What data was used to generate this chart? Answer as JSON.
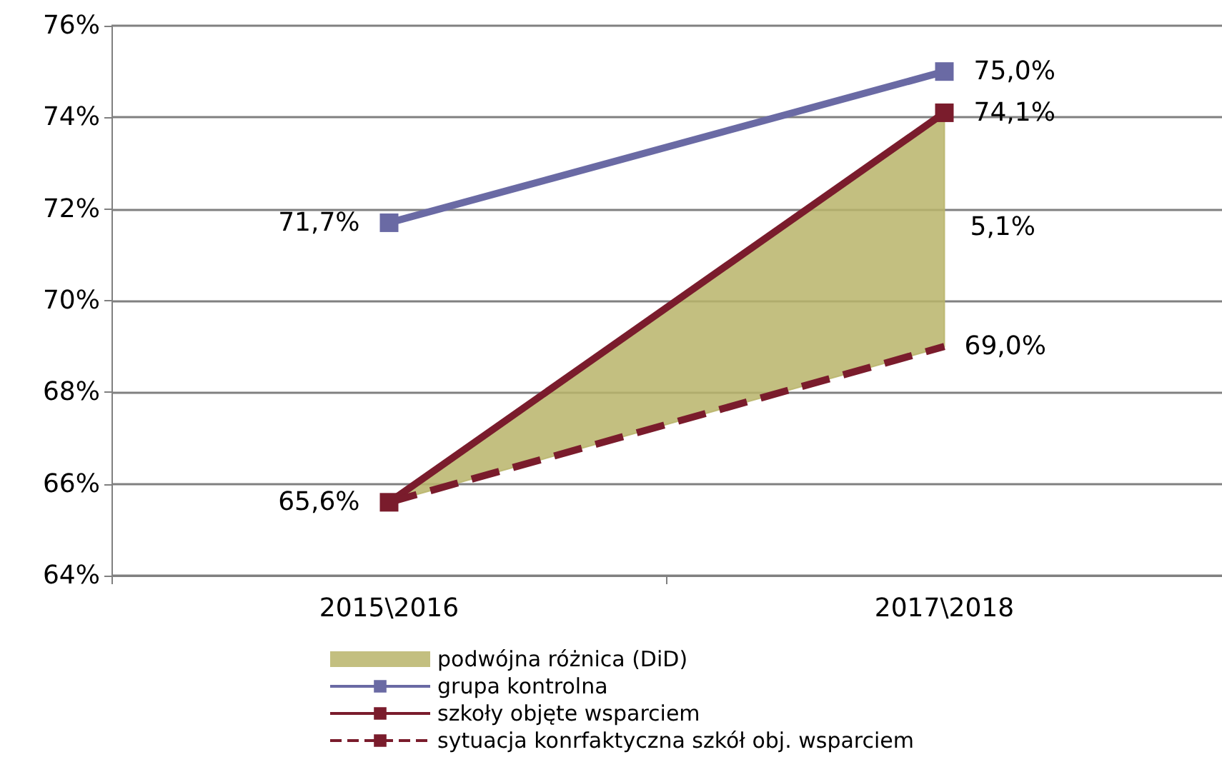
{
  "chart_data": {
    "type": "line",
    "categories": [
      "2015\\2016",
      "2017\\2018"
    ],
    "series": [
      {
        "name": "podwójna różnica (DiD)",
        "type": "area",
        "color": "#b8b46a",
        "values": [
          null,
          null
        ],
        "lower": [
          65.6,
          69.0
        ],
        "upper": [
          65.6,
          74.1
        ]
      },
      {
        "name": "grupa kontrolna",
        "color": "#6a6aa4",
        "values": [
          71.7,
          75.0
        ],
        "value_labels": [
          "71,7%",
          "75,0%"
        ],
        "marker": "square",
        "line_style": "solid"
      },
      {
        "name": "szkoły objęte wsparciem",
        "color": "#7a1c2c",
        "values": [
          65.6,
          74.1
        ],
        "value_labels": [
          "65,6%",
          "74,1%"
        ],
        "marker": "square",
        "line_style": "solid"
      },
      {
        "name": "sytuacja konrfaktyczna szkół obj. wsparciem",
        "color": "#7a1c2c",
        "values": [
          65.6,
          69.0
        ],
        "value_labels": [
          null,
          "69,0%"
        ],
        "marker": "none",
        "line_style": "dashed"
      }
    ],
    "annotations": [
      {
        "text": "5,1%",
        "x": "2017\\2018",
        "y": 71.6
      }
    ],
    "ylim": [
      64,
      76
    ],
    "yticks": [
      {
        "value": 64,
        "label": "64%"
      },
      {
        "value": 66,
        "label": "66%"
      },
      {
        "value": 68,
        "label": "68%"
      },
      {
        "value": 70,
        "label": "70%"
      },
      {
        "value": 72,
        "label": "72%"
      },
      {
        "value": 74,
        "label": "74%"
      },
      {
        "value": 76,
        "label": "76%"
      }
    ],
    "grid": "y",
    "legend": "bottom"
  }
}
